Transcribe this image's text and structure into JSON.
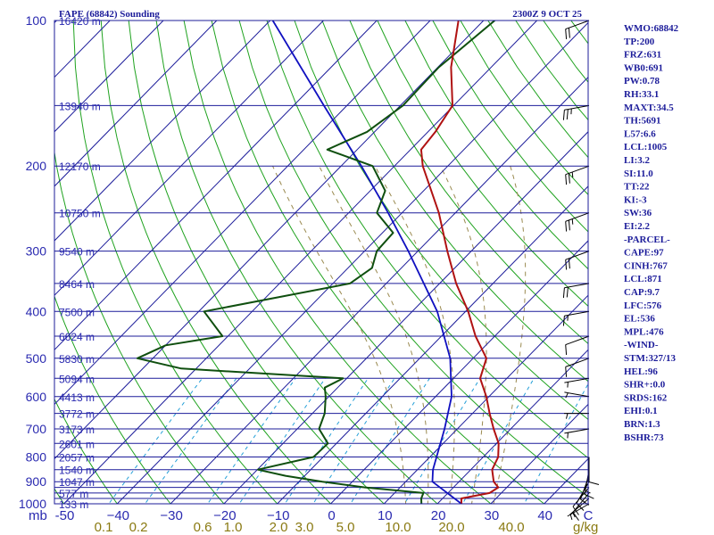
{
  "header": {
    "title": "FAPE (68842) Sounding",
    "time": "2300Z  9 OCT 25"
  },
  "chart_data": {
    "type": "skew-t",
    "title": "FAPE (68842) Sounding",
    "valid_time": "2300Z  9 OCT 25",
    "pressure_levels": [
      100,
      200,
      300,
      400,
      500,
      600,
      700,
      800,
      900,
      1000
    ],
    "pressure_labels": [
      "100",
      "200",
      "300",
      "400",
      "500",
      "600",
      "700",
      "800",
      "900",
      "1000"
    ],
    "height_labels": [
      {
        "p": 100,
        "text": "16420 m"
      },
      {
        "p": 150,
        "text": "13940 m"
      },
      {
        "p": 200,
        "text": "12170 m"
      },
      {
        "p": 250,
        "text": "10750 m"
      },
      {
        "p": 300,
        "text": "9540 m"
      },
      {
        "p": 350,
        "text": "8464 m"
      },
      {
        "p": 400,
        "text": "7500 m"
      },
      {
        "p": 450,
        "text": "6624 m"
      },
      {
        "p": 500,
        "text": "5830 m"
      },
      {
        "p": 550,
        "text": "5094 m"
      },
      {
        "p": 600,
        "text": "4413 m"
      },
      {
        "p": 650,
        "text": "3772 m"
      },
      {
        "p": 700,
        "text": "3173 m"
      },
      {
        "p": 750,
        "text": "2601 m"
      },
      {
        "p": 800,
        "text": "2057 m"
      },
      {
        "p": 850,
        "text": "1540 m"
      },
      {
        "p": 900,
        "text": "1047 m"
      },
      {
        "p": 950,
        "text": "577 m"
      },
      {
        "p": 1000,
        "text": "133 m"
      }
    ],
    "temp_ticks": [
      -50,
      -40,
      -30,
      -20,
      -10,
      0,
      10,
      20,
      30,
      40
    ],
    "temp_tick_labels": [
      "-50",
      "−40",
      "−30",
      "−20",
      "−10",
      "0",
      "10",
      "20",
      "30",
      "40"
    ],
    "x_unit_left": "mb",
    "x_unit_right": "C",
    "mixing_ratio_labels": [
      "0.1",
      "0.2",
      "0.6",
      "1.0",
      "2.0",
      "3.0",
      "5.0",
      "10.0",
      "20.0",
      "40.0"
    ],
    "mixing_ratio_unit": "g/kg",
    "temperature_profile": [
      [
        1000,
        24.5
      ],
      [
        975,
        23.5
      ],
      [
        950,
        27.8
      ],
      [
        925,
        28.4
      ],
      [
        900,
        26.5
      ],
      [
        850,
        24.0
      ],
      [
        800,
        22.8
      ],
      [
        750,
        20.4
      ],
      [
        700,
        16.8
      ],
      [
        650,
        13.2
      ],
      [
        600,
        9.5
      ],
      [
        550,
        5.0
      ],
      [
        500,
        2.5
      ],
      [
        450,
        -3.6
      ],
      [
        400,
        -9.5
      ],
      [
        350,
        -16.9
      ],
      [
        300,
        -24.5
      ],
      [
        250,
        -33.1
      ],
      [
        200,
        -44.7
      ],
      [
        185,
        -48.0
      ],
      [
        170,
        -48.6
      ],
      [
        150,
        -50.2
      ],
      [
        125,
        -57.5
      ],
      [
        100,
        -64.7
      ]
    ],
    "dewpoint_profile": [
      [
        1000,
        17.0
      ],
      [
        975,
        16.0
      ],
      [
        950,
        15.4
      ],
      [
        925,
        3.4
      ],
      [
        900,
        -5.6
      ],
      [
        875,
        -13.6
      ],
      [
        850,
        -19.9
      ],
      [
        800,
        -11.8
      ],
      [
        750,
        -11.6
      ],
      [
        700,
        -15.9
      ],
      [
        650,
        -17.7
      ],
      [
        600,
        -20.6
      ],
      [
        575,
        -22.4
      ],
      [
        550,
        -20.7
      ],
      [
        525,
        -52.8
      ],
      [
        500,
        -62.9
      ],
      [
        470,
        -60.0
      ],
      [
        450,
        -51.0
      ],
      [
        400,
        -59.0
      ],
      [
        350,
        -36.8
      ],
      [
        325,
        -35.5
      ],
      [
        300,
        -37.7
      ],
      [
        275,
        -38.0
      ],
      [
        250,
        -44.7
      ],
      [
        225,
        -47.2
      ],
      [
        200,
        -54.1
      ],
      [
        185,
        -65.6
      ],
      [
        170,
        -61.4
      ],
      [
        150,
        -59.5
      ],
      [
        125,
        -59.8
      ],
      [
        100,
        -57.9
      ]
    ],
    "parcel_profile": [
      [
        1000,
        24.5
      ],
      [
        900,
        15.0
      ],
      [
        850,
        12.9
      ],
      [
        700,
        7.6
      ],
      [
        600,
        3.0
      ],
      [
        500,
        -4.3
      ],
      [
        400,
        -15.3
      ],
      [
        300,
        -31.8
      ],
      [
        250,
        -42.6
      ],
      [
        200,
        -56.2
      ],
      [
        150,
        -74.3
      ],
      [
        100,
        -99.5
      ]
    ],
    "wind_barbs": [
      {
        "p": 1000,
        "dir": 240,
        "spd": 5
      },
      {
        "p": 975,
        "dir": 230,
        "spd": 5
      },
      {
        "p": 950,
        "dir": 220,
        "spd": 10
      },
      {
        "p": 925,
        "dir": 220,
        "spd": 10
      },
      {
        "p": 900,
        "dir": 210,
        "spd": 10
      },
      {
        "p": 875,
        "dir": 200,
        "spd": 10
      },
      {
        "p": 850,
        "dir": 190,
        "spd": 15
      },
      {
        "p": 800,
        "dir": 180,
        "spd": 10
      },
      {
        "p": 700,
        "dir": 260,
        "spd": 5
      },
      {
        "p": 650,
        "dir": 270,
        "spd": 5
      },
      {
        "p": 600,
        "dir": 280,
        "spd": 5
      },
      {
        "p": 550,
        "dir": 260,
        "spd": 5
      },
      {
        "p": 500,
        "dir": 250,
        "spd": 10
      },
      {
        "p": 450,
        "dir": 250,
        "spd": 10
      },
      {
        "p": 400,
        "dir": 260,
        "spd": 15
      },
      {
        "p": 350,
        "dir": 260,
        "spd": 20
      },
      {
        "p": 300,
        "dir": 250,
        "spd": 20
      },
      {
        "p": 250,
        "dir": 250,
        "spd": 25
      },
      {
        "p": 200,
        "dir": 250,
        "spd": 25
      },
      {
        "p": 150,
        "dir": 260,
        "spd": 25
      },
      {
        "p": 100,
        "dir": 250,
        "spd": 20
      }
    ]
  },
  "indices": [
    "WMO:68842",
    "TP:200",
    "FRZ:631",
    "WB0:691",
    "PW:0.78",
    "RH:33.1",
    "MAXT:34.5",
    "TH:5691",
    "L57:6.6",
    "LCL:1005",
    "LI:3.2",
    "SI:11.0",
    "TT:22",
    "KI:-3",
    "SW:36",
    "EI:2.2",
    "-PARCEL-",
    "CAPE:97",
    "CINH:767",
    "LCL:871",
    "CAP:9.7",
    "LFC:576",
    "EL:536",
    "MPL:476",
    "-WIND-",
    "STM:327/13",
    "HEL:96",
    "SHR+:0.0",
    "SRDS:162",
    "EHI:0.1",
    "BRN:1.3",
    "BSHR:73"
  ],
  "colors": {
    "frame": "#1c1c9a",
    "isobar": "#1c1c9a",
    "isotherm": "#1c1c9a",
    "dry_adiabat": "#1fa21f",
    "moist_adiabat": "#9a8a50",
    "mixing_ratio": "#25a0d8",
    "temperature": "#b01212",
    "dewpoint": "#0f4f0f",
    "parcel": "#1010c0",
    "text": "#1c1c9a",
    "mixing_text": "#8a7a12",
    "barb": "#000000"
  }
}
